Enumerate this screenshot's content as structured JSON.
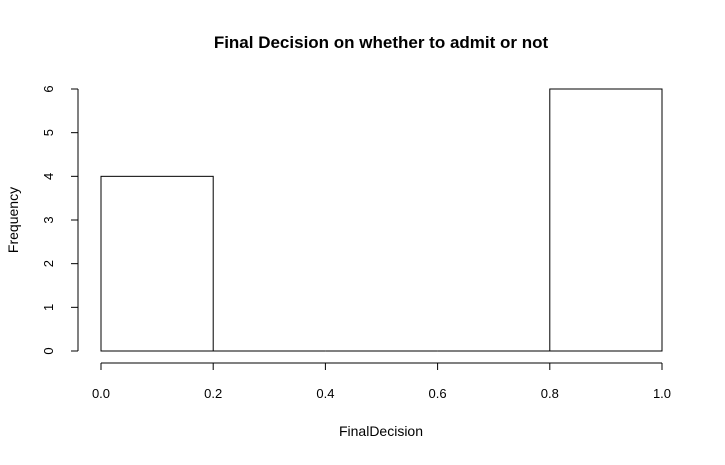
{
  "chart_data": {
    "type": "bar",
    "title": "Final Decision on whether to admit or not",
    "xlabel": "FinalDecision",
    "ylabel": "Frequency",
    "bins": [
      {
        "start": 0.0,
        "end": 0.2,
        "count": 4
      },
      {
        "start": 0.2,
        "end": 0.4,
        "count": 0
      },
      {
        "start": 0.4,
        "end": 0.6,
        "count": 0
      },
      {
        "start": 0.6,
        "end": 0.8,
        "count": 0
      },
      {
        "start": 0.8,
        "end": 1.0,
        "count": 6
      }
    ],
    "xlim": [
      0.0,
      1.0
    ],
    "ylim": [
      0,
      6
    ],
    "x_ticks": [
      "0.0",
      "0.2",
      "0.4",
      "0.6",
      "0.8",
      "1.0"
    ],
    "y_ticks": [
      "0",
      "1",
      "2",
      "3",
      "4",
      "5",
      "6"
    ],
    "grid": false,
    "legend": "none",
    "bar_fill": "#ffffff",
    "bar_stroke": "#000000"
  }
}
